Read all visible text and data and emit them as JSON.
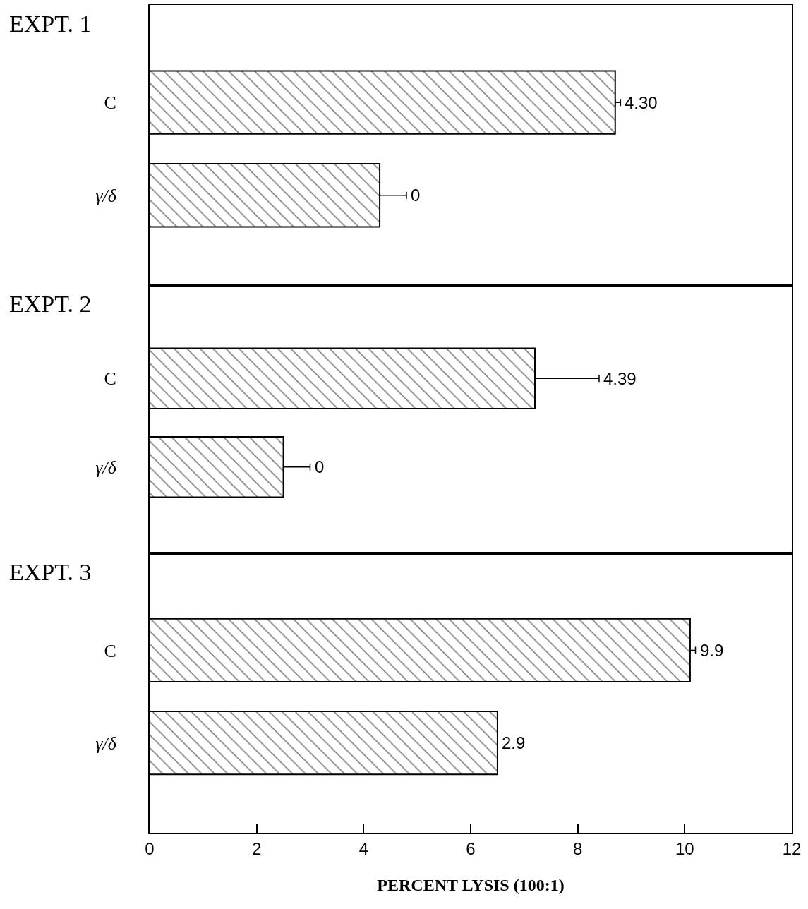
{
  "chart_data": [
    {
      "type": "bar",
      "orientation": "horizontal",
      "title": "EXPT. 1",
      "categories": [
        "C",
        "γ/δ"
      ],
      "values": [
        8.7,
        4.3
      ],
      "errors": [
        [
          8.7,
          8.8
        ],
        [
          4.3,
          4.8
        ]
      ],
      "color": "#000000",
      "xlim": [
        0,
        12
      ],
      "xticks": [
        0,
        2,
        4,
        6,
        8,
        10,
        12
      ],
      "tick_labels": "y",
      "annotations": [
        {
          "text": "4.30",
          "x": 8.8,
          "y": "C"
        },
        {
          "text": "0",
          "x": 4.8,
          "y": "γ/δ"
        }
      ]
    },
    {
      "type": "bar",
      "orientation": "horizontal",
      "title": "EXPT. 2",
      "categories": [
        "C",
        "γ/δ"
      ],
      "values": [
        7.2,
        2.5
      ],
      "errors": [
        [
          7.2,
          8.4
        ],
        [
          2.5,
          3.0
        ]
      ],
      "color": "#000000",
      "xlim": [
        0,
        12
      ],
      "xticks": [
        0,
        2,
        4,
        6,
        8,
        10,
        12
      ],
      "tick_labels": "y",
      "annotations": [
        {
          "text": "4.39",
          "x": 8.4,
          "y": "C"
        },
        {
          "text": "0",
          "x": 3.0,
          "y": "γ/δ"
        }
      ]
    },
    {
      "type": "bar",
      "orientation": "horizontal",
      "title": "EXPT. 3",
      "xlabel": "PERCENT LYSIS (100:1)",
      "categories": [
        "C",
        "γ/δ"
      ],
      "values": [
        10.1,
        6.5
      ],
      "errors": [
        [
          10.1,
          10.2
        ],
        null
      ],
      "color": "#000000",
      "xlim": [
        0,
        12
      ],
      "xticks": [
        0,
        2,
        4,
        6,
        8,
        10,
        12
      ],
      "annotations": [
        {
          "text": "9.9",
          "x": 10.2,
          "y": "C"
        },
        {
          "text": "2.9",
          "x": 6.5,
          "y": "γ/δ"
        }
      ]
    }
  ]
}
